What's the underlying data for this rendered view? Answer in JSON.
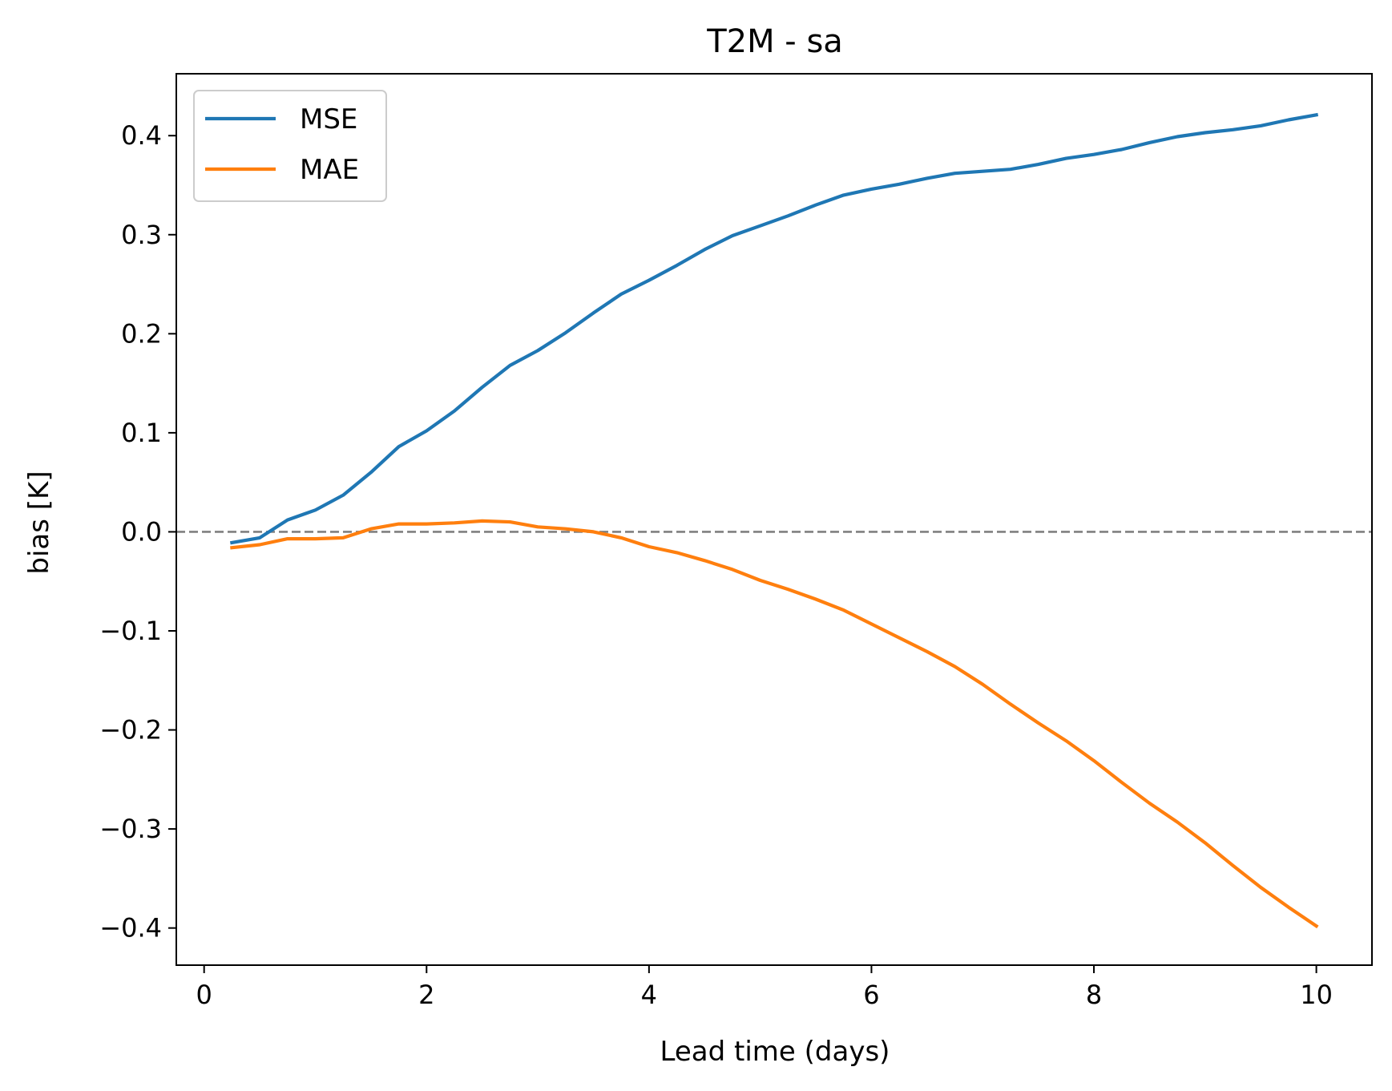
{
  "chart_data": {
    "type": "line",
    "title": "T2M - sa",
    "xlabel": "Lead time (days)",
    "ylabel": "bias [K]",
    "xlim": [
      -0.25,
      10.5
    ],
    "ylim": [
      -0.4375,
      0.4625
    ],
    "xticks": [
      0,
      2,
      4,
      6,
      8,
      10
    ],
    "xtick_labels": [
      "0",
      "2",
      "4",
      "6",
      "8",
      "10"
    ],
    "yticks": [
      -0.4,
      -0.3,
      -0.2,
      -0.1,
      0.0,
      0.1,
      0.2,
      0.3,
      0.4
    ],
    "ytick_labels": [
      "−0.4",
      "−0.3",
      "−0.2",
      "−0.1",
      "0.0",
      "0.1",
      "0.2",
      "0.3",
      "0.4"
    ],
    "grid": false,
    "legend_position": "top-left",
    "reference_line": {
      "y": 0.0,
      "style": "dashed",
      "color": "#808080"
    },
    "x": [
      0.25,
      0.5,
      0.75,
      1.0,
      1.25,
      1.5,
      1.75,
      2.0,
      2.25,
      2.5,
      2.75,
      3.0,
      3.25,
      3.5,
      3.75,
      4.0,
      4.25,
      4.5,
      4.75,
      5.0,
      5.25,
      5.5,
      5.75,
      6.0,
      6.25,
      6.5,
      6.75,
      7.0,
      7.25,
      7.5,
      7.75,
      8.0,
      8.25,
      8.5,
      8.75,
      9.0,
      9.25,
      9.5,
      9.75,
      10.0
    ],
    "series": [
      {
        "name": "MSE",
        "color": "#1f77b4",
        "values": [
          -0.011,
          -0.006,
          0.012,
          0.022,
          0.037,
          0.06,
          0.086,
          0.102,
          0.122,
          0.146,
          0.168,
          0.183,
          0.201,
          0.221,
          0.24,
          0.254,
          0.269,
          0.285,
          0.299,
          0.309,
          0.319,
          0.33,
          0.34,
          0.346,
          0.351,
          0.357,
          0.362,
          0.364,
          0.366,
          0.371,
          0.377,
          0.381,
          0.386,
          0.393,
          0.399,
          0.403,
          0.406,
          0.41,
          0.416,
          0.421
        ]
      },
      {
        "name": "MAE",
        "color": "#ff7f0e",
        "values": [
          -0.016,
          -0.013,
          -0.007,
          -0.007,
          -0.006,
          0.003,
          0.008,
          0.008,
          0.009,
          0.011,
          0.01,
          0.005,
          0.003,
          0.0,
          -0.006,
          -0.015,
          -0.021,
          -0.029,
          -0.038,
          -0.049,
          -0.058,
          -0.068,
          -0.079,
          -0.093,
          -0.107,
          -0.121,
          -0.136,
          -0.154,
          -0.174,
          -0.193,
          -0.211,
          -0.231,
          -0.253,
          -0.274,
          -0.293,
          -0.314,
          -0.337,
          -0.359,
          -0.379,
          -0.398
        ]
      }
    ]
  }
}
